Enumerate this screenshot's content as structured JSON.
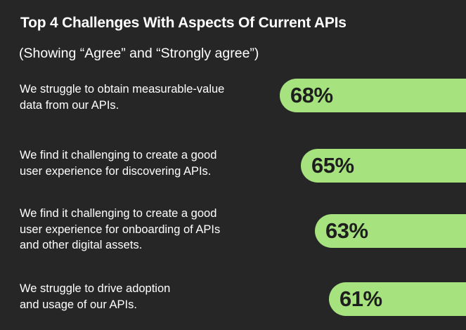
{
  "chart_data": {
    "type": "bar",
    "orientation": "horizontal",
    "title": "Top 4 Challenges With Aspects Of Current APIs",
    "subtitle": "(Showing “Agree” and “Strongly agree”)",
    "categories": [
      "We struggle to obtain measurable-value\ndata from our APIs.",
      "We find it challenging to create a good\nuser experience for discovering APIs.",
      "We find it challenging to create a good\nuser experience for onboarding of APIs\nand other digital assets.",
      "We struggle to drive adoption\nand usage of our APIs."
    ],
    "values": [
      68,
      65,
      63,
      61
    ],
    "value_labels": [
      "68%",
      "65%",
      "63%",
      "61%"
    ],
    "unit": "%",
    "colors": {
      "background": "#262626",
      "bar": "#a6e27e",
      "text": "#ffffff",
      "bar_text": "#1e1e1e"
    }
  }
}
